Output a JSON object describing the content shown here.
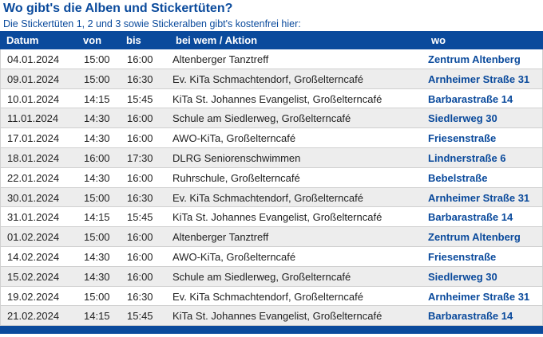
{
  "title": "Wo gibt's die Alben und Stickertüten?",
  "subtitle": "Die Stickertüten 1, 2 und 3 sowie Stickeralben gibt's kostenfrei hier:",
  "table": {
    "headers": {
      "datum": "Datum",
      "von": "von",
      "bis": "bis",
      "aktion": "bei wem / Aktion",
      "wo": "wo"
    },
    "rows": [
      {
        "datum": "04.01.2024",
        "von": "15:00",
        "bis": "16:00",
        "aktion": "Altenberger Tanztreff",
        "wo": "Zentrum Altenberg"
      },
      {
        "datum": "09.01.2024",
        "von": "15:00",
        "bis": "16:30",
        "aktion": "Ev. KiTa Schmachtendorf, Großelterncafé",
        "wo": "Arnheimer Straße 31"
      },
      {
        "datum": "10.01.2024",
        "von": "14:15",
        "bis": "15:45",
        "aktion": "KiTa St. Johannes Evangelist, Großelterncafé",
        "wo": "Barbarastraße 14"
      },
      {
        "datum": "11.01.2024",
        "von": "14:30",
        "bis": "16:00",
        "aktion": "Schule am Siedlerweg, Großelterncafé",
        "wo": "Siedlerweg 30"
      },
      {
        "datum": "17.01.2024",
        "von": "14:30",
        "bis": "16:00",
        "aktion": "AWO-KiTa, Großelterncafé",
        "wo": "Friesenstraße"
      },
      {
        "datum": "18.01.2024",
        "von": "16:00",
        "bis": "17:30",
        "aktion": "DLRG Seniorenschwimmen",
        "wo": "Lindnerstraße 6"
      },
      {
        "datum": "22.01.2024",
        "von": "14:30",
        "bis": "16:00",
        "aktion": "Ruhrschule, Großelterncafé",
        "wo": "Bebelstraße"
      },
      {
        "datum": "30.01.2024",
        "von": "15:00",
        "bis": "16:30",
        "aktion": "Ev. KiTa Schmachtendorf, Großelterncafé",
        "wo": "Arnheimer Straße 31"
      },
      {
        "datum": "31.01.2024",
        "von": "14:15",
        "bis": "15:45",
        "aktion": "KiTa St. Johannes Evangelist, Großelterncafé",
        "wo": "Barbarastraße 14"
      },
      {
        "datum": "01.02.2024",
        "von": "15:00",
        "bis": "16:00",
        "aktion": "Altenberger Tanztreff",
        "wo": "Zentrum Altenberg"
      },
      {
        "datum": "14.02.2024",
        "von": "14:30",
        "bis": "16:00",
        "aktion": "AWO-KiTa, Großelterncafé",
        "wo": "Friesenstraße"
      },
      {
        "datum": "15.02.2024",
        "von": "14:30",
        "bis": "16:00",
        "aktion": "Schule am Siedlerweg, Großelterncafé",
        "wo": "Siedlerweg 30"
      },
      {
        "datum": "19.02.2024",
        "von": "15:00",
        "bis": "16:30",
        "aktion": "Ev. KiTa Schmachtendorf, Großelterncafé",
        "wo": "Arnheimer Straße 31"
      },
      {
        "datum": "21.02.2024",
        "von": "14:15",
        "bis": "15:45",
        "aktion": "KiTa St. Johannes Evangelist, Großelterncafé",
        "wo": "Barbarastraße 14"
      }
    ]
  },
  "colors": {
    "header_bg": "#0a4a9c",
    "link": "#0a4a9c",
    "row_alt": "#ededed"
  }
}
